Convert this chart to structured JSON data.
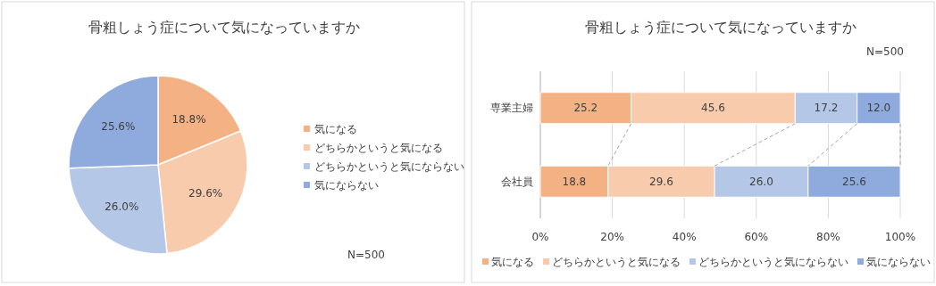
{
  "chart_data": [
    {
      "type": "pie",
      "title": "骨粗しょう症について気になっていますか",
      "categories": [
        "気になる",
        "どちらかというと気になる",
        "どちらかというと気にならない",
        "気にならない"
      ],
      "values": [
        18.8,
        29.6,
        26.0,
        25.6
      ],
      "value_labels": [
        "18.8%",
        "29.6%",
        "26.0%",
        "25.6%"
      ],
      "colors": [
        "#f4b183",
        "#f8cbad",
        "#b4c7e7",
        "#8faadc"
      ],
      "legend": "right",
      "annotations": [
        "N=500"
      ]
    },
    {
      "type": "bar",
      "orientation": "horizontal",
      "stacked": true,
      "title": "骨粗しょう症について気になっていますか",
      "categories": [
        "専業主婦",
        "会社員"
      ],
      "series": [
        {
          "name": "気になる",
          "color": "#f4b183",
          "values": [
            25.2,
            18.8
          ],
          "value_labels": [
            "25.2",
            "18.8"
          ]
        },
        {
          "name": "どちらかというと気になる",
          "color": "#f8cbad",
          "values": [
            45.6,
            29.6
          ],
          "value_labels": [
            "45.6",
            "29.6"
          ]
        },
        {
          "name": "どちらかというと気にならない",
          "color": "#b4c7e7",
          "values": [
            17.2,
            26.0
          ],
          "value_labels": [
            "17.2",
            "26.0"
          ]
        },
        {
          "name": "気にならない",
          "color": "#8faadc",
          "values": [
            12.0,
            25.6
          ],
          "value_labels": [
            "12.0",
            "25.6"
          ]
        }
      ],
      "xlim": [
        0,
        100
      ],
      "xticks": [
        {
          "value": 0,
          "label": "0%"
        },
        {
          "value": 20,
          "label": "20%"
        },
        {
          "value": 40,
          "label": "40%"
        },
        {
          "value": 60,
          "label": "60%"
        },
        {
          "value": 80,
          "label": "80%"
        },
        {
          "value": 100,
          "label": "100%"
        }
      ],
      "grid": "x",
      "legend": "bottom",
      "annotations": [
        "N=500"
      ]
    }
  ]
}
